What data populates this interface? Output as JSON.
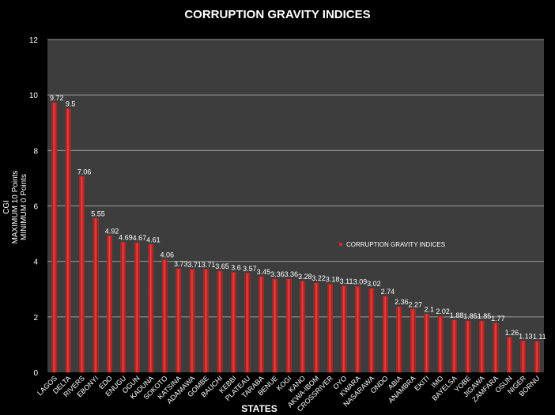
{
  "chart_data": {
    "type": "bar",
    "title": "CORRUPTION GRAVITY INDICES",
    "xlabel": "STATES",
    "ylabel_lines": [
      "CGI",
      "MAXIMUM 10 Points",
      "MINIMUM 0 Points"
    ],
    "ylim": [
      0,
      12
    ],
    "yticks": [
      0,
      2,
      4,
      6,
      8,
      10,
      12
    ],
    "grid": true,
    "legend_position": "right",
    "bar_color": "#d42a2a",
    "categories": [
      "LAGOS",
      "DELTA",
      "RIVERS",
      "EBONYI",
      "EDO",
      "ENUGU",
      "OGUN",
      "KADUNA",
      "SOKOTO",
      "KATSINA",
      "ADAMAWA",
      "GOMBE",
      "BAUCHI",
      "KEBBI",
      "PLATEAU",
      "TARABA",
      "BENUE",
      "KOGI",
      "KANO",
      "AKWA-IBOM",
      "CROSSRIVER",
      "OYO",
      "KWARA",
      "NASARAWA",
      "ONDO",
      "ABIA",
      "ANAMBRA",
      "EKITI",
      "IMO",
      "BAYELSA",
      "YOBE",
      "JIGAWA",
      "ZAMFARA",
      "OSUN",
      "NIGER",
      "BORNU"
    ],
    "series": [
      {
        "name": "CORRUPTION GRAVITY INDICES",
        "values": [
          9.72,
          9.5,
          7.06,
          5.55,
          4.92,
          4.69,
          4.67,
          4.61,
          4.06,
          3.73,
          3.71,
          3.71,
          3.65,
          3.6,
          3.57,
          3.45,
          3.36,
          3.36,
          3.28,
          3.22,
          3.18,
          3.11,
          3.09,
          3.02,
          2.74,
          2.36,
          2.27,
          2.1,
          2.02,
          1.88,
          1.85,
          1.85,
          1.77,
          1.26,
          1.13,
          1.11
        ]
      }
    ]
  }
}
